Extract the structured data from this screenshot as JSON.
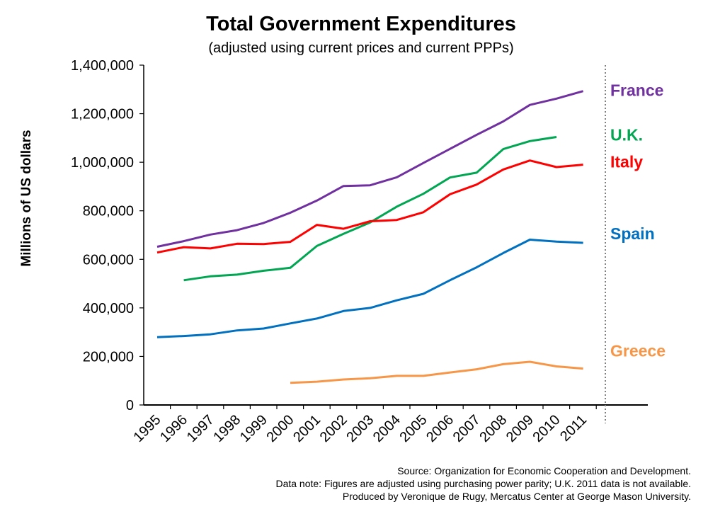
{
  "title": "Total Government Expenditures",
  "subtitle": "(adjusted using current prices and current PPPs)",
  "source_lines": [
    "Source: Organization for Economic Cooperation and Development.",
    "Data note: Figures are adjusted using purchasing power parity; U.K. 2011 data is not available.",
    "Produced by Veronique de Rugy, Mercatus Center at George Mason University."
  ],
  "chart_data": {
    "type": "line",
    "ylabel": "Millions of US dollars",
    "ylim": [
      0,
      1400000
    ],
    "yticks": [
      0,
      200000,
      400000,
      600000,
      800000,
      1000000,
      1200000,
      1400000
    ],
    "ytick_labels": [
      "0",
      "200,000",
      "400,000",
      "600,000",
      "800,000",
      "1,000,000",
      "1,200,000",
      "1,400,000"
    ],
    "categories": [
      "1995",
      "1996",
      "1997",
      "1998",
      "1999",
      "2000",
      "2001",
      "2002",
      "2003",
      "2004",
      "2005",
      "2006",
      "2007",
      "2008",
      "2009",
      "2010",
      "2011"
    ],
    "grid": false,
    "legend": "direct labels at right end of lines",
    "series": [
      {
        "name": "France",
        "color": "#7030a0",
        "values": [
          652000,
          675000,
          702000,
          720000,
          750000,
          792000,
          842000,
          902000,
          905000,
          938000,
          997000,
          1055000,
          1113000,
          1168000,
          1236000,
          1262000,
          1293000
        ]
      },
      {
        "name": "U.K.",
        "color": "#00a651",
        "values": [
          null,
          514000,
          530000,
          537000,
          553000,
          565000,
          655000,
          705000,
          752000,
          817000,
          870000,
          937000,
          957000,
          1054000,
          1087000,
          1104000,
          null
        ]
      },
      {
        "name": "Italy",
        "color": "#ff0000",
        "values": [
          628000,
          650000,
          645000,
          664000,
          663000,
          672000,
          742000,
          726000,
          757000,
          762000,
          794000,
          868000,
          908000,
          970000,
          1007000,
          980000,
          990000
        ]
      },
      {
        "name": "Spain",
        "color": "#0070c0",
        "values": [
          279000,
          284000,
          291000,
          307000,
          315000,
          336000,
          356000,
          387000,
          400000,
          431000,
          458000,
          514000,
          567000,
          626000,
          681000,
          673000,
          668000
        ]
      },
      {
        "name": "Greece",
        "color": "#f79646",
        "values": [
          null,
          null,
          null,
          null,
          null,
          91000,
          96000,
          105000,
          110000,
          120000,
          120000,
          134000,
          147000,
          168000,
          178000,
          159000,
          150000
        ]
      }
    ]
  }
}
